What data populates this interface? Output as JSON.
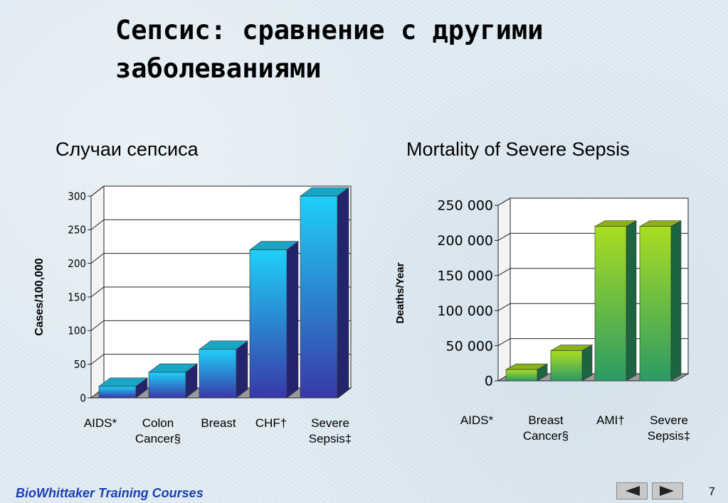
{
  "slide": {
    "title_line1": "Сепсис: сравнение с другими",
    "title_line2": "заболеваниями",
    "footer": "BioWhittaker Training Courses",
    "page_number": "7"
  },
  "colors": {
    "left_bar_front_top": "#1fd0f8",
    "left_bar_front_bottom": "#3838a8",
    "right_bar_front_top": "#aadd22",
    "right_bar_front_bottom": "#2c9a64"
  },
  "chart_data": [
    {
      "type": "bar",
      "title": "Случаи сепсиса",
      "xlabel": "",
      "ylabel": "Cases/100,000",
      "ylim": [
        0,
        300
      ],
      "yticks": [
        "0",
        "50",
        "100",
        "150",
        "200",
        "250",
        "300"
      ],
      "categories": [
        {
          "line1": "AIDS*",
          "line2": ""
        },
        {
          "line1": "Colon",
          "line2": "Cancer§"
        },
        {
          "line1": "Breast",
          "line2": ""
        },
        {
          "line1": "CHF†",
          "line2": ""
        },
        {
          "line1": "Severe",
          "line2": "Sepsis‡"
        }
      ],
      "values": [
        17,
        38,
        72,
        220,
        300
      ],
      "grid": true
    },
    {
      "type": "bar",
      "title": "Mortality of Severe Sepsis",
      "xlabel": "",
      "ylabel": "Deaths/Year",
      "ylim": [
        0,
        250000
      ],
      "yticks": [
        "0",
        "50 000",
        "100 000",
        "150 000",
        "200 000",
        "250 000"
      ],
      "categories": [
        {
          "line1": "AIDS*",
          "line2": ""
        },
        {
          "line1": "Breast",
          "line2": "Cancer§"
        },
        {
          "line1": "AMI†",
          "line2": ""
        },
        {
          "line1": "Severe",
          "line2": "Sepsis‡"
        }
      ],
      "values": [
        16000,
        43000,
        220000,
        220000
      ],
      "grid": true
    }
  ]
}
